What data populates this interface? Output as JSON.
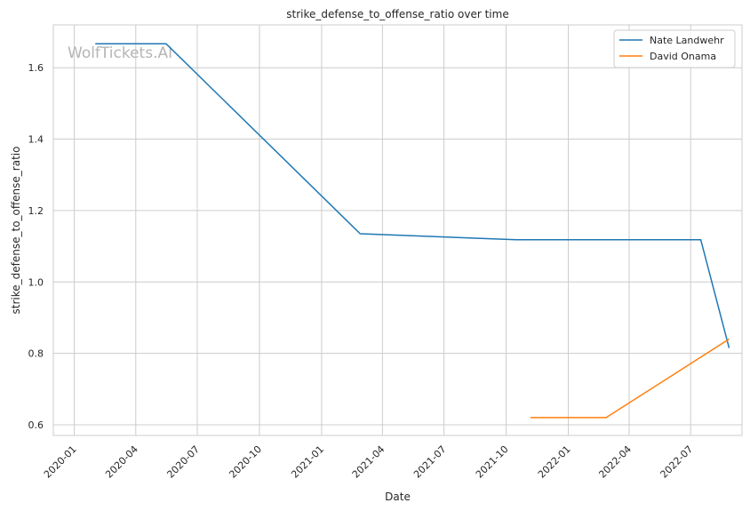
{
  "chart_data": {
    "type": "line",
    "title": "strike_defense_to_offense_ratio over time",
    "xlabel": "Date",
    "ylabel": "strike_defense_to_offense_ratio",
    "watermark": "WolfTickets.AI",
    "x_ticks": [
      "2020-01",
      "2020-04",
      "2020-07",
      "2020-10",
      "2021-01",
      "2021-04",
      "2021-07",
      "2021-10",
      "2022-01",
      "2022-04",
      "2022-07"
    ],
    "y_ticks": [
      "0.6",
      "0.8",
      "1.0",
      "1.2",
      "1.4",
      "1.6"
    ],
    "xlim": [
      "2019-12-01",
      "2022-09-15"
    ],
    "ylim": [
      0.57,
      1.72
    ],
    "grid": true,
    "legend_position": "top-right",
    "series": [
      {
        "name": "Nate Landwehr",
        "color": "#1f77b4",
        "points": [
          {
            "x": "2020-02-01",
            "y": 1.667
          },
          {
            "x": "2020-05-16",
            "y": 1.667
          },
          {
            "x": "2021-02-27",
            "y": 1.135
          },
          {
            "x": "2021-10-16",
            "y": 1.118
          },
          {
            "x": "2022-07-16",
            "y": 1.118
          },
          {
            "x": "2022-08-27",
            "y": 0.815
          }
        ]
      },
      {
        "name": "David Onama",
        "color": "#ff7f0e",
        "points": [
          {
            "x": "2021-11-06",
            "y": 0.62
          },
          {
            "x": "2022-02-26",
            "y": 0.62
          },
          {
            "x": "2022-08-27",
            "y": 0.84
          }
        ]
      }
    ]
  }
}
